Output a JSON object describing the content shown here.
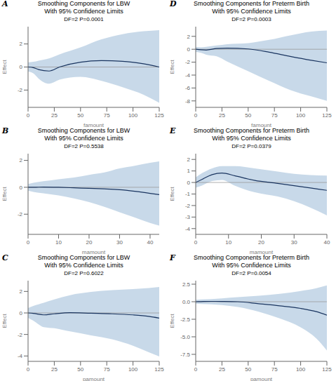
{
  "chart_data": [
    {
      "type": "line",
      "annotations": [
        "A"
      ],
      "title": [
        "Smoothing Components for LBW",
        "With 95% Confidence Limits"
      ],
      "subtitle": "DF=2  P=0.0001",
      "xlabel": "famount",
      "ylabel": "Effect",
      "xlim": [
        0,
        125
      ],
      "ylim": [
        -3.5,
        3.5
      ],
      "xticks": [
        0,
        25,
        50,
        75,
        100,
        125
      ],
      "yticks": [
        -2,
        0,
        2
      ],
      "grid": false,
      "color": "#1a3560",
      "hline": {
        "y": 0,
        "color": "#999999"
      },
      "x": [
        0,
        5,
        10,
        20,
        30,
        50,
        70,
        90,
        110,
        125
      ],
      "values": [
        0.0,
        -0.05,
        -0.22,
        -0.35,
        0.0,
        0.42,
        0.55,
        0.5,
        0.28,
        0.0
      ],
      "band": {
        "color": "#abc4dd",
        "upper": [
          0.4,
          0.45,
          0.55,
          0.75,
          1.1,
          1.7,
          2.4,
          2.85,
          3.1,
          3.2
        ],
        "lower": [
          -0.4,
          -0.55,
          -1.0,
          -1.45,
          -1.1,
          -0.85,
          -1.2,
          -1.75,
          -2.4,
          -3.1
        ]
      }
    },
    {
      "type": "line",
      "annotations": [
        "D"
      ],
      "title": [
        "Smoothing Components for Preterm Birth",
        "With 95% Confidence Limits"
      ],
      "subtitle": "DF=2  P=0.0003",
      "xlabel": "famount",
      "ylabel": "Effect",
      "xlim": [
        0,
        125
      ],
      "ylim": [
        -9,
        3.5
      ],
      "xticks": [
        0,
        25,
        50,
        75,
        100,
        125
      ],
      "yticks": [
        -8,
        -6,
        -4,
        -2,
        0,
        2
      ],
      "grid": false,
      "color": "#1a3560",
      "hline": {
        "y": 0,
        "color": "#999999"
      },
      "x": [
        0,
        5,
        10,
        20,
        30,
        50,
        70,
        90,
        110,
        125
      ],
      "values": [
        0.0,
        -0.08,
        -0.12,
        0.12,
        0.18,
        0.05,
        -0.45,
        -1.1,
        -1.7,
        -2.1
      ],
      "band": {
        "color": "#abc4dd",
        "upper": [
          0.35,
          0.3,
          0.38,
          0.58,
          0.78,
          0.95,
          1.45,
          2.15,
          2.75,
          2.9
        ],
        "lower": [
          -0.4,
          -0.55,
          -0.85,
          -1.1,
          -1.9,
          -3.4,
          -4.9,
          -6.3,
          -7.3,
          -8.0
        ]
      }
    },
    {
      "type": "line",
      "annotations": [
        "B"
      ],
      "title": [
        "Smoothing Components for LBW",
        "With 95% Confidence Limits"
      ],
      "subtitle": "DF=2  P=0.5538",
      "xlabel": "mamount",
      "ylabel": "Effect",
      "xlim": [
        0,
        43
      ],
      "ylim": [
        -3.5,
        2.5
      ],
      "xticks": [
        0,
        10,
        20,
        30,
        40
      ],
      "yticks": [
        -2,
        0,
        2
      ],
      "grid": false,
      "color": "#1a3560",
      "hline": {
        "y": 0,
        "color": "#999999"
      },
      "x": [
        0,
        2,
        5,
        10,
        15,
        20,
        25,
        30,
        35,
        40,
        43
      ],
      "values": [
        0.0,
        0.0,
        0.02,
        0.0,
        -0.04,
        -0.08,
        -0.12,
        -0.18,
        -0.3,
        -0.45,
        -0.55
      ],
      "band": {
        "color": "#abc4dd",
        "upper": [
          0.25,
          0.35,
          0.45,
          0.6,
          0.72,
          0.92,
          1.1,
          1.4,
          1.6,
          1.82,
          1.92
        ],
        "lower": [
          -0.25,
          -0.35,
          -0.45,
          -0.6,
          -0.82,
          -1.1,
          -1.45,
          -1.85,
          -2.25,
          -2.65,
          -2.85
        ]
      }
    },
    {
      "type": "line",
      "annotations": [
        "E"
      ],
      "title": [
        "Smoothing Components for Preterm Birth",
        "With 95% Confidence Limits"
      ],
      "subtitle": "DF=2  P=0.0379",
      "xlabel": "mamount",
      "ylabel": "Effect",
      "xlim": [
        0,
        40
      ],
      "ylim": [
        -4.5,
        2.5
      ],
      "xticks": [
        0,
        10,
        20,
        30,
        40
      ],
      "yticks": [
        -4,
        -3,
        -2,
        -1,
        0,
        1,
        2
      ],
      "grid": false,
      "color": "#1a3560",
      "hline": {
        "y": 0,
        "color": "#999999"
      },
      "x": [
        0,
        2,
        5,
        8,
        12,
        18,
        25,
        30,
        35,
        40
      ],
      "values": [
        0.0,
        0.28,
        0.68,
        0.82,
        0.58,
        0.18,
        -0.08,
        -0.28,
        -0.48,
        -0.68
      ],
      "band": {
        "color": "#abc4dd",
        "upper": [
          0.45,
          0.82,
          1.22,
          1.42,
          1.42,
          1.22,
          0.95,
          0.75,
          0.65,
          0.6
        ],
        "lower": [
          -0.45,
          -0.25,
          0.12,
          0.22,
          -0.28,
          -0.85,
          -1.22,
          -1.62,
          -2.18,
          -2.85
        ]
      }
    },
    {
      "type": "line",
      "annotations": [
        "C"
      ],
      "title": [
        "Smoothing Components for LBW",
        "With 95% Confidence Limits"
      ],
      "subtitle": "DF=2  P=0.6022",
      "xlabel": "pamount",
      "ylabel": "Effect",
      "xlim": [
        0,
        125
      ],
      "ylim": [
        -4.5,
        3.0
      ],
      "xticks": [
        0,
        25,
        50,
        75,
        100,
        125
      ],
      "yticks": [
        -4,
        -2,
        0,
        2
      ],
      "grid": false,
      "color": "#1a3560",
      "hline": {
        "y": 0,
        "color": "#999999"
      },
      "x": [
        0,
        5,
        15,
        25,
        40,
        60,
        80,
        100,
        115,
        125
      ],
      "values": [
        0.0,
        -0.04,
        -0.18,
        -0.08,
        0.02,
        -0.03,
        -0.08,
        -0.18,
        -0.32,
        -0.48
      ],
      "band": {
        "color": "#abc4dd",
        "upper": [
          0.45,
          0.65,
          0.95,
          1.25,
          1.65,
          1.95,
          2.12,
          2.22,
          2.32,
          2.42
        ],
        "lower": [
          -0.45,
          -0.72,
          -1.32,
          -1.42,
          -1.72,
          -2.08,
          -2.45,
          -3.05,
          -3.65,
          -4.05
        ]
      }
    },
    {
      "type": "line",
      "annotations": [
        "F"
      ],
      "title": [
        "Smoothing Components for Preterm Birth",
        "With 95% Confidence Limits"
      ],
      "subtitle": "DF=2  P=0.0054",
      "xlabel": "pamount",
      "ylabel": "Effect",
      "xlim": [
        0,
        125
      ],
      "ylim": [
        -8.5,
        3.0
      ],
      "xticks": [
        0,
        25,
        50,
        75,
        100,
        125
      ],
      "yticks": [
        -7.5,
        {
          "value": -5.0,
          "label": "-5.0"
        },
        -2.5,
        {
          "value": 0.0,
          "label": "0.0"
        },
        2.5
      ],
      "grid": false,
      "color": "#1a3560",
      "hline": {
        "y": 0,
        "color": "#999999"
      },
      "x": [
        0,
        5,
        15,
        25,
        40,
        60,
        80,
        100,
        115,
        125
      ],
      "values": [
        0.0,
        0.02,
        0.05,
        0.04,
        0.0,
        -0.28,
        -0.58,
        -0.95,
        -1.42,
        -1.92
      ],
      "band": {
        "color": "#abc4dd",
        "upper": [
          0.28,
          0.32,
          0.38,
          0.48,
          0.65,
          0.85,
          1.12,
          1.52,
          1.92,
          2.32
        ],
        "lower": [
          -0.28,
          -0.32,
          -0.38,
          -0.48,
          -0.75,
          -1.42,
          -2.38,
          -3.65,
          -5.25,
          -6.95
        ]
      }
    }
  ]
}
